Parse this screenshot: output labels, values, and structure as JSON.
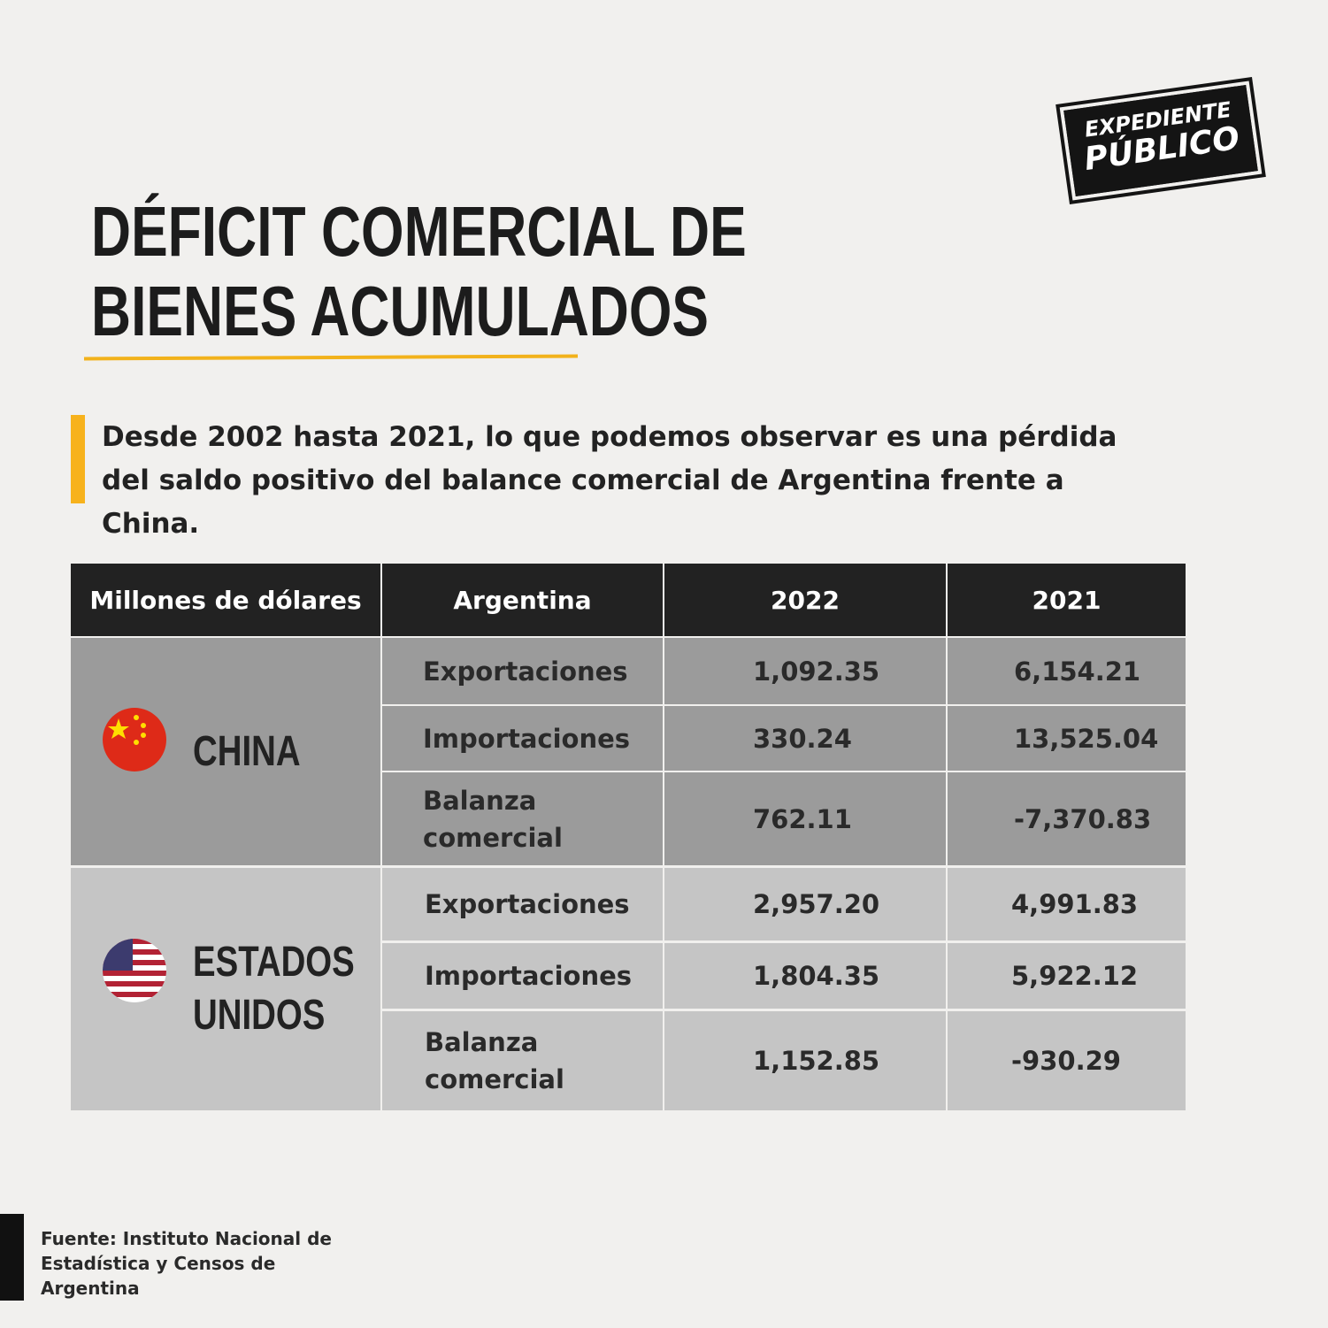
{
  "logo": {
    "line1": "EXPEDIENTE",
    "line2": "PÚBLICO"
  },
  "title": [
    "DÉFICIT COMERCIAL DE",
    "BIENES ACUMULADOS"
  ],
  "subtitle": "Desde 2002 hasta 2021, lo que podemos observar es una pérdida del saldo positivo del balance comercial de Argentina frente a China.",
  "table": {
    "header": [
      "Millones de dólares",
      "Argentina",
      "2022",
      "2021"
    ],
    "groups": [
      {
        "country": "CHINA",
        "rows": [
          [
            "Exportaciones",
            "1,092.35",
            "6,154.21"
          ],
          [
            "Importaciones",
            "330.24",
            "13,525.04"
          ],
          [
            "Balanza comercial",
            "762.11",
            "-7,370.83"
          ]
        ]
      },
      {
        "country": "ESTADOS UNIDOS",
        "rows": [
          [
            "Exportaciones",
            "2,957.20",
            "4,991.83"
          ],
          [
            "Importaciones",
            "1,804.35",
            "5,922.12"
          ],
          [
            "Balanza comercial",
            "1,152.85",
            "-930.29"
          ]
        ]
      }
    ]
  },
  "source": "Fuente: Instituto Nacional de Estadística y Censos de Argentina"
}
